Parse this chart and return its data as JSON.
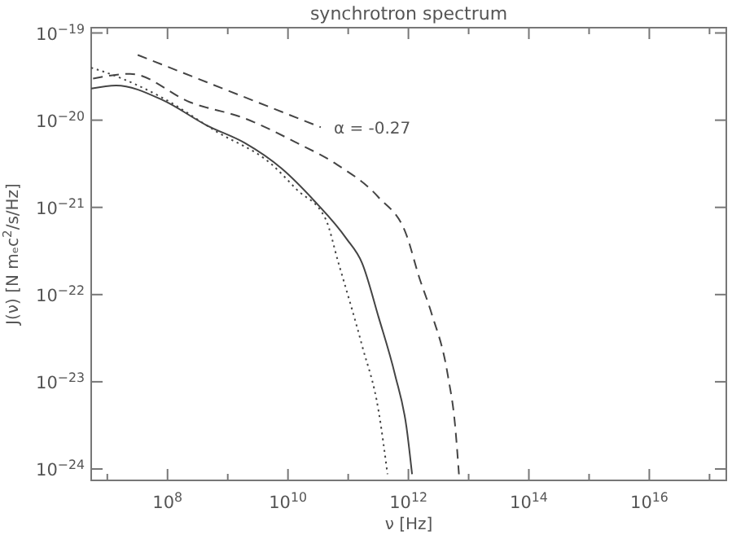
{
  "chart_data": {
    "type": "line",
    "title": "synchrotron spectrum",
    "xlabel": "ν [Hz]",
    "ylabel": "J(ν) [N mₑc$^{2}$/s/Hz]",
    "log": "xy",
    "grid": false,
    "marker": "none",
    "xlim": [
      5400000.0,
      1.9e+17
    ],
    "ylim": [
      7.4e-25,
      1.15e-19
    ],
    "xticks": [
      {
        "value": 10000000.0,
        "label": null
      },
      {
        "value": 100000000.0,
        "label": "10$^{8}$"
      },
      {
        "value": 1000000000.0,
        "label": null
      },
      {
        "value": 10000000000.0,
        "label": "10$^{10}$"
      },
      {
        "value": 100000000000.0,
        "label": null
      },
      {
        "value": 1000000000000.0,
        "label": "10$^{12}$"
      },
      {
        "value": 10000000000000.0,
        "label": null
      },
      {
        "value": 100000000000000.0,
        "label": "10$^{14}$"
      },
      {
        "value": 1000000000000000.0,
        "label": null
      },
      {
        "value": 1e+16,
        "label": "10$^{16}$"
      },
      {
        "value": 1e+17,
        "label": null
      }
    ],
    "yticks": [
      {
        "value": 1e-24,
        "label": "10$^{−24}$"
      },
      {
        "value": 1e-23,
        "label": "10$^{−23}$"
      },
      {
        "value": 1e-22,
        "label": "10$^{−22}$"
      },
      {
        "value": 1e-21,
        "label": "10$^{−21}$"
      },
      {
        "value": 1e-20,
        "label": "10$^{−20}$"
      },
      {
        "value": 1e-19,
        "label": "10$^{−19}$"
      }
    ],
    "series": [
      {
        "color": "#444444",
        "line_style": "solid",
        "x": [
          5400000.0,
          14000000.0,
          83000000.0,
          450000000.0,
          1900000000.0,
          7800000000.0,
          27000000000.0,
          93000000000.0,
          170000000000.0,
          320000000000.0,
          600000000000.0,
          930000000000.0,
          1150000000000.0
        ],
        "values": [
          2.3e-20,
          2.5e-20,
          1.7e-20,
          8.7e-21,
          5.5e-21,
          2.8e-21,
          1.2e-21,
          4.4e-22,
          2.3e-22,
          5.5e-23,
          1.2e-23,
          3e-24,
          8.7e-25
        ]
      },
      {
        "color": "#444444",
        "line_style": "dotted",
        "x": [
          5400000.0,
          11000000.0,
          83000000.0,
          650000000.0,
          5400000000.0,
          14000000000.0,
          42000000000.0,
          69000000000.0,
          170000000000.0,
          320000000000.0,
          450000000000.0
        ],
        "values": [
          4e-20,
          3.4e-20,
          1.8e-20,
          7.4e-21,
          3.1e-21,
          1.6e-21,
          7.4e-22,
          2.3e-22,
          2.6e-23,
          4.6e-24,
          8.7e-25
        ]
      },
      {
        "color": "#444444",
        "line_style": "dashed",
        "x": [
          5800000.0,
          24000000.0,
          240000000.0,
          1900000000.0,
          14000000000.0,
          65000000000.0,
          320000000000.0,
          930000000000.0,
          1500000000000.0,
          2400000000000.0,
          4500000000000.0,
          6000000000000.0,
          6900000000000.0
        ],
        "values": [
          3e-20,
          3.4e-20,
          1.6e-20,
          1.05e-20,
          5.5e-21,
          3.1e-21,
          1.3e-21,
          4.8e-22,
          1.6e-22,
          6.2e-23,
          1.2e-23,
          3e-24,
          8.7e-25
        ]
      },
      {
        "color": "#444444",
        "line_style": "dashed",
        "x": [
          32000000.0,
          35000000000.0
        ],
        "values": [
          5.6e-20,
          8.3e-21
        ]
      }
    ],
    "annotations": [
      "α = -0.27"
    ]
  }
}
